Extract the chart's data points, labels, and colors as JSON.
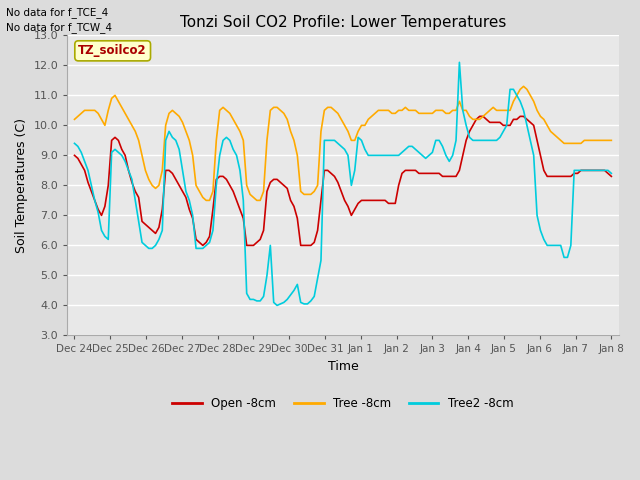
{
  "title": "Tonzi Soil CO2 Profile: Lower Temperatures",
  "xlabel": "Time",
  "ylabel": "Soil Temperatures (C)",
  "annotation_lines": [
    "No data for f_TCE_4",
    "No data for f_TCW_4"
  ],
  "watermark": "TZ_soilco2",
  "ylim": [
    3.0,
    13.0
  ],
  "yticks": [
    3.0,
    4.0,
    5.0,
    6.0,
    7.0,
    8.0,
    9.0,
    10.0,
    11.0,
    12.0,
    13.0
  ],
  "xtick_labels": [
    "Dec 24",
    "Dec 25",
    "Dec 26",
    "Dec 27",
    "Dec 28",
    "Dec 29",
    "Dec 30",
    "Dec 31",
    "Jan 1",
    "Jan 2",
    "Jan 3",
    "Jan 4",
    "Jan 5",
    "Jan 6",
    "Jan 7",
    "Jan 8"
  ],
  "bg_color": "#dcdcdc",
  "plot_bg": "#e8e8e8",
  "grid_color": "#ffffff",
  "series": {
    "open": {
      "label": "Open -8cm",
      "color": "#cc0000",
      "lw": 1.2
    },
    "tree": {
      "label": "Tree -8cm",
      "color": "#ffaa00",
      "lw": 1.2
    },
    "tree2": {
      "label": "Tree2 -8cm",
      "color": "#00ccdd",
      "lw": 1.2
    }
  },
  "open_y": [
    9.0,
    8.9,
    8.7,
    8.5,
    8.1,
    7.8,
    7.5,
    7.2,
    7.0,
    7.3,
    8.0,
    9.5,
    9.6,
    9.5,
    9.2,
    9.0,
    8.5,
    8.1,
    7.8,
    7.6,
    6.8,
    6.7,
    6.6,
    6.5,
    6.4,
    6.6,
    7.2,
    8.5,
    8.5,
    8.4,
    8.2,
    8.0,
    7.8,
    7.6,
    7.2,
    6.9,
    6.2,
    6.1,
    6.0,
    6.1,
    6.3,
    7.2,
    8.2,
    8.3,
    8.3,
    8.2,
    8.0,
    7.8,
    7.5,
    7.2,
    6.9,
    6.0,
    6.0,
    6.0,
    6.1,
    6.2,
    6.5,
    7.8,
    8.1,
    8.2,
    8.2,
    8.1,
    8.0,
    7.9,
    7.5,
    7.3,
    6.9,
    6.0,
    6.0,
    6.0,
    6.0,
    6.1,
    6.5,
    7.5,
    8.5,
    8.5,
    8.4,
    8.3,
    8.1,
    7.8,
    7.5,
    7.3,
    7.0,
    7.2,
    7.4,
    7.5,
    7.5,
    7.5,
    7.5,
    7.5,
    7.5,
    7.5,
    7.5,
    7.4,
    7.4,
    7.4,
    8.0,
    8.4,
    8.5,
    8.5,
    8.5,
    8.5,
    8.4,
    8.4,
    8.4,
    8.4,
    8.4,
    8.4,
    8.4,
    8.3,
    8.3,
    8.3,
    8.3,
    8.3,
    8.5,
    9.0,
    9.5,
    9.8,
    10.0,
    10.2,
    10.3,
    10.3,
    10.2,
    10.1,
    10.1,
    10.1,
    10.1,
    10.0,
    10.0,
    10.0,
    10.2,
    10.2,
    10.3,
    10.3,
    10.2,
    10.1,
    10.0,
    9.5,
    9.0,
    8.5,
    8.3,
    8.3,
    8.3,
    8.3,
    8.3,
    8.3,
    8.3,
    8.3,
    8.4,
    8.4,
    8.5,
    8.5,
    8.5,
    8.5,
    8.5,
    8.5,
    8.5,
    8.5,
    8.4,
    8.3
  ],
  "tree_y": [
    10.2,
    10.3,
    10.4,
    10.5,
    10.5,
    10.5,
    10.5,
    10.4,
    10.2,
    10.0,
    10.5,
    10.9,
    11.0,
    10.8,
    10.6,
    10.4,
    10.2,
    10.0,
    9.8,
    9.5,
    9.0,
    8.5,
    8.2,
    8.0,
    7.9,
    8.0,
    8.5,
    10.0,
    10.4,
    10.5,
    10.4,
    10.3,
    10.1,
    9.8,
    9.5,
    9.0,
    8.0,
    7.8,
    7.6,
    7.5,
    7.5,
    7.8,
    9.5,
    10.5,
    10.6,
    10.5,
    10.4,
    10.2,
    10.0,
    9.8,
    9.5,
    8.0,
    7.7,
    7.6,
    7.5,
    7.5,
    7.8,
    9.5,
    10.5,
    10.6,
    10.6,
    10.5,
    10.4,
    10.2,
    9.8,
    9.5,
    9.0,
    7.8,
    7.7,
    7.7,
    7.7,
    7.8,
    8.0,
    9.8,
    10.5,
    10.6,
    10.6,
    10.5,
    10.4,
    10.2,
    10.0,
    9.8,
    9.5,
    9.5,
    9.8,
    10.0,
    10.0,
    10.2,
    10.3,
    10.4,
    10.5,
    10.5,
    10.5,
    10.5,
    10.4,
    10.4,
    10.5,
    10.5,
    10.6,
    10.5,
    10.5,
    10.5,
    10.4,
    10.4,
    10.4,
    10.4,
    10.4,
    10.5,
    10.5,
    10.5,
    10.4,
    10.4,
    10.5,
    10.5,
    10.8,
    10.5,
    10.5,
    10.3,
    10.2,
    10.2,
    10.2,
    10.3,
    10.4,
    10.5,
    10.6,
    10.5,
    10.5,
    10.5,
    10.5,
    10.5,
    10.8,
    11.0,
    11.2,
    11.3,
    11.2,
    11.0,
    10.8,
    10.5,
    10.3,
    10.2,
    10.0,
    9.8,
    9.7,
    9.6,
    9.5,
    9.4,
    9.4,
    9.4,
    9.4,
    9.4,
    9.4,
    9.5,
    9.5,
    9.5,
    9.5,
    9.5,
    9.5,
    9.5,
    9.5,
    9.5
  ],
  "tree2_y": [
    9.4,
    9.3,
    9.1,
    8.8,
    8.5,
    8.0,
    7.5,
    7.1,
    6.5,
    6.3,
    6.2,
    9.1,
    9.2,
    9.1,
    9.0,
    8.8,
    8.5,
    8.2,
    7.5,
    6.8,
    6.1,
    6.0,
    5.9,
    5.9,
    6.0,
    6.2,
    6.5,
    9.5,
    9.8,
    9.6,
    9.5,
    9.2,
    8.5,
    7.8,
    7.5,
    7.0,
    5.9,
    5.9,
    5.9,
    6.0,
    6.1,
    6.5,
    8.0,
    9.0,
    9.5,
    9.6,
    9.5,
    9.2,
    9.0,
    8.5,
    7.5,
    4.4,
    4.2,
    4.2,
    4.15,
    4.15,
    4.3,
    5.0,
    6.0,
    4.1,
    4.0,
    4.05,
    4.1,
    4.2,
    4.35,
    4.5,
    4.7,
    4.1,
    4.05,
    4.05,
    4.15,
    4.3,
    4.9,
    5.5,
    9.5,
    9.5,
    9.5,
    9.5,
    9.4,
    9.3,
    9.2,
    9.0,
    8.0,
    8.5,
    9.6,
    9.5,
    9.2,
    9.0,
    9.0,
    9.0,
    9.0,
    9.0,
    9.0,
    9.0,
    9.0,
    9.0,
    9.0,
    9.1,
    9.2,
    9.3,
    9.3,
    9.2,
    9.1,
    9.0,
    8.9,
    9.0,
    9.1,
    9.5,
    9.5,
    9.3,
    9.0,
    8.8,
    9.0,
    9.5,
    12.1,
    10.5,
    10.0,
    9.6,
    9.5,
    9.5,
    9.5,
    9.5,
    9.5,
    9.5,
    9.5,
    9.5,
    9.6,
    9.8,
    10.0,
    11.2,
    11.2,
    11.0,
    10.8,
    10.5,
    10.0,
    9.5,
    9.0,
    7.0,
    6.5,
    6.2,
    6.0,
    6.0,
    6.0,
    6.0,
    6.0,
    5.6,
    5.6,
    6.0,
    8.5,
    8.5,
    8.5,
    8.5,
    8.5,
    8.5,
    8.5,
    8.5,
    8.5,
    8.5,
    8.5,
    8.4
  ]
}
